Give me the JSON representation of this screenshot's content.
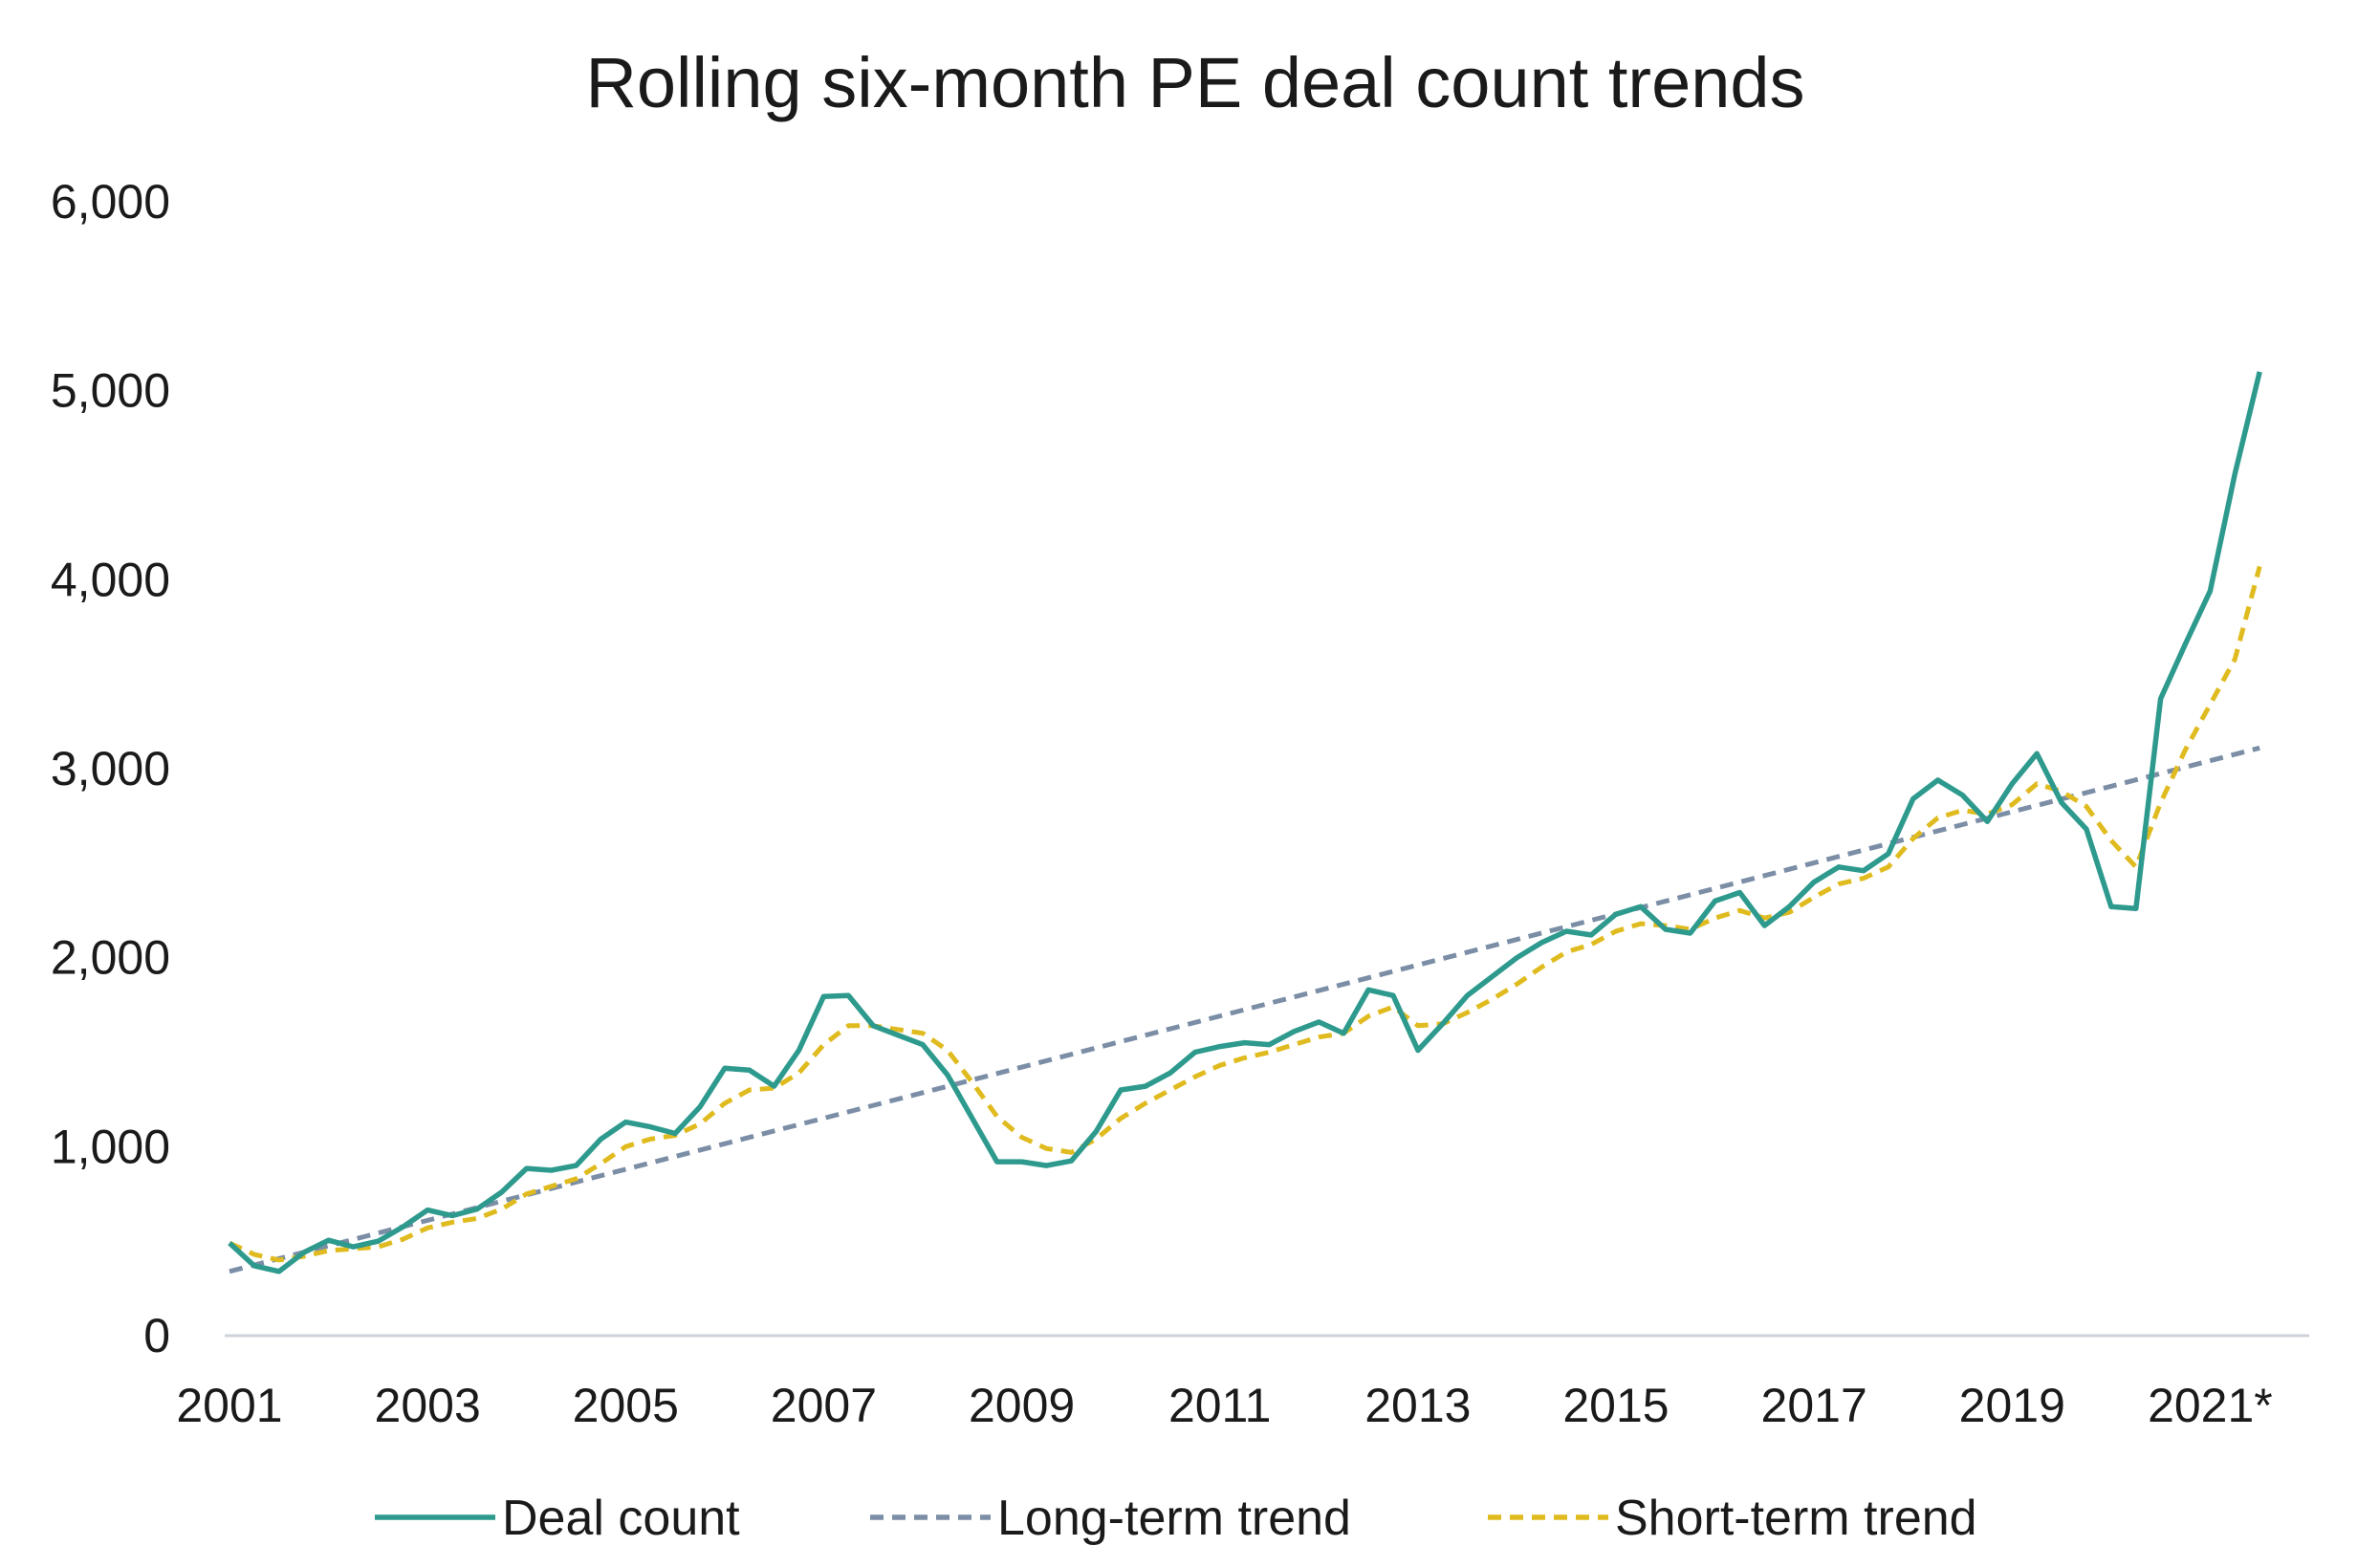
{
  "chart_data": {
    "type": "line",
    "title": "Rolling six-month PE deal count trends",
    "xlabel": "",
    "ylabel": "",
    "ylim": [
      0,
      6000
    ],
    "y_ticks": [
      "0",
      "1,000",
      "2,000",
      "3,000",
      "4,000",
      "5,000",
      "6,000"
    ],
    "y_tick_values": [
      0,
      1000,
      2000,
      3000,
      4000,
      5000,
      6000
    ],
    "x_ticks": [
      "2001",
      "2003",
      "2005",
      "2007",
      "2009",
      "2011",
      "2013",
      "2015",
      "2017",
      "2019",
      "2021*"
    ],
    "x_tick_positions": [
      2001,
      2003,
      2005,
      2007,
      2009,
      2011,
      2013,
      2015,
      2017,
      2019,
      2021
    ],
    "xlim": [
      2001,
      2022
    ],
    "grid": false,
    "legend": "bottom",
    "colors": {
      "deal_count": "#2e9a8e",
      "long_term": "#7b8ea6",
      "short_term": "#e0bb1f",
      "axis": "#cfd3d9"
    },
    "series": [
      {
        "name": "Deal count",
        "style": "solid",
        "x": [
          2001.0,
          2001.25,
          2001.5,
          2001.75,
          2002.0,
          2002.25,
          2002.5,
          2002.75,
          2003.0,
          2003.25,
          2003.5,
          2003.75,
          2004.0,
          2004.25,
          2004.5,
          2004.75,
          2005.0,
          2005.25,
          2005.5,
          2005.75,
          2006.0,
          2006.25,
          2006.5,
          2006.75,
          2007.0,
          2007.25,
          2007.5,
          2007.75,
          2008.0,
          2008.25,
          2008.5,
          2008.75,
          2009.0,
          2009.25,
          2009.5,
          2009.75,
          2010.0,
          2010.25,
          2010.5,
          2010.75,
          2011.0,
          2011.25,
          2011.5,
          2011.75,
          2012.0,
          2012.25,
          2012.5,
          2012.75,
          2013.0,
          2013.25,
          2013.5,
          2013.75,
          2014.0,
          2014.25,
          2014.5,
          2014.75,
          2015.0,
          2015.25,
          2015.5,
          2015.75,
          2016.0,
          2016.25,
          2016.5,
          2016.75,
          2017.0,
          2017.25,
          2017.5,
          2017.75,
          2018.0,
          2018.25,
          2018.5,
          2018.75,
          2019.0,
          2019.25,
          2019.5,
          2019.75,
          2020.0,
          2020.25,
          2020.5,
          2020.75,
          2021.0,
          2021.25,
          2021.5
        ],
        "values": [
          490,
          370,
          340,
          440,
          505,
          470,
          500,
          575,
          665,
          635,
          670,
          760,
          885,
          875,
          900,
          1040,
          1130,
          1105,
          1070,
          1210,
          1415,
          1405,
          1320,
          1510,
          1795,
          1800,
          1640,
          1590,
          1540,
          1380,
          1150,
          920,
          920,
          900,
          925,
          1080,
          1300,
          1320,
          1390,
          1500,
          1530,
          1550,
          1540,
          1610,
          1660,
          1600,
          1830,
          1800,
          1510,
          1650,
          1800,
          1900,
          2000,
          2080,
          2140,
          2120,
          2230,
          2270,
          2150,
          2130,
          2300,
          2345,
          2170,
          2270,
          2400,
          2480,
          2460,
          2550,
          2840,
          2940,
          2860,
          2720,
          2920,
          3080,
          2820,
          2680,
          2270,
          2260,
          3370,
          3660,
          3940,
          4560,
          5100
        ]
      },
      {
        "name": "Long-term trend",
        "style": "dashed",
        "x": [
          2001.0,
          2021.5
        ],
        "values": [
          340,
          3110
        ]
      },
      {
        "name": "Short-term trend",
        "style": "dashed",
        "x": [
          2001.0,
          2001.25,
          2001.5,
          2001.75,
          2002.0,
          2002.25,
          2002.5,
          2002.75,
          2003.0,
          2003.25,
          2003.5,
          2003.75,
          2004.0,
          2004.25,
          2004.5,
          2004.75,
          2005.0,
          2005.25,
          2005.5,
          2005.75,
          2006.0,
          2006.25,
          2006.5,
          2006.75,
          2007.0,
          2007.25,
          2007.5,
          2007.75,
          2008.0,
          2008.25,
          2008.5,
          2008.75,
          2009.0,
          2009.25,
          2009.5,
          2009.75,
          2010.0,
          2010.25,
          2010.5,
          2010.75,
          2011.0,
          2011.25,
          2011.5,
          2011.75,
          2012.0,
          2012.25,
          2012.5,
          2012.75,
          2013.0,
          2013.25,
          2013.5,
          2013.75,
          2014.0,
          2014.25,
          2014.5,
          2014.75,
          2015.0,
          2015.25,
          2015.5,
          2015.75,
          2016.0,
          2016.25,
          2016.5,
          2016.75,
          2017.0,
          2017.25,
          2017.5,
          2017.75,
          2018.0,
          2018.25,
          2018.5,
          2018.75,
          2019.0,
          2019.25,
          2019.5,
          2019.75,
          2020.0,
          2020.25,
          2020.5,
          2020.75,
          2021.0,
          2021.25,
          2021.5
        ],
        "values": [
          490,
          430,
          400,
          420,
          450,
          460,
          470,
          510,
          570,
          600,
          620,
          670,
          750,
          790,
          830,
          910,
          1000,
          1040,
          1060,
          1120,
          1230,
          1300,
          1310,
          1390,
          1540,
          1640,
          1640,
          1620,
          1600,
          1510,
          1340,
          1160,
          1050,
          990,
          970,
          1040,
          1150,
          1230,
          1300,
          1370,
          1430,
          1470,
          1500,
          1540,
          1580,
          1600,
          1690,
          1740,
          1640,
          1650,
          1710,
          1780,
          1860,
          1950,
          2030,
          2070,
          2140,
          2180,
          2170,
          2150,
          2210,
          2250,
          2210,
          2240,
          2320,
          2390,
          2420,
          2480,
          2630,
          2740,
          2780,
          2760,
          2810,
          2920,
          2880,
          2800,
          2620,
          2480,
          2820,
          3100,
          3340,
          3580,
          4070
        ]
      }
    ]
  }
}
